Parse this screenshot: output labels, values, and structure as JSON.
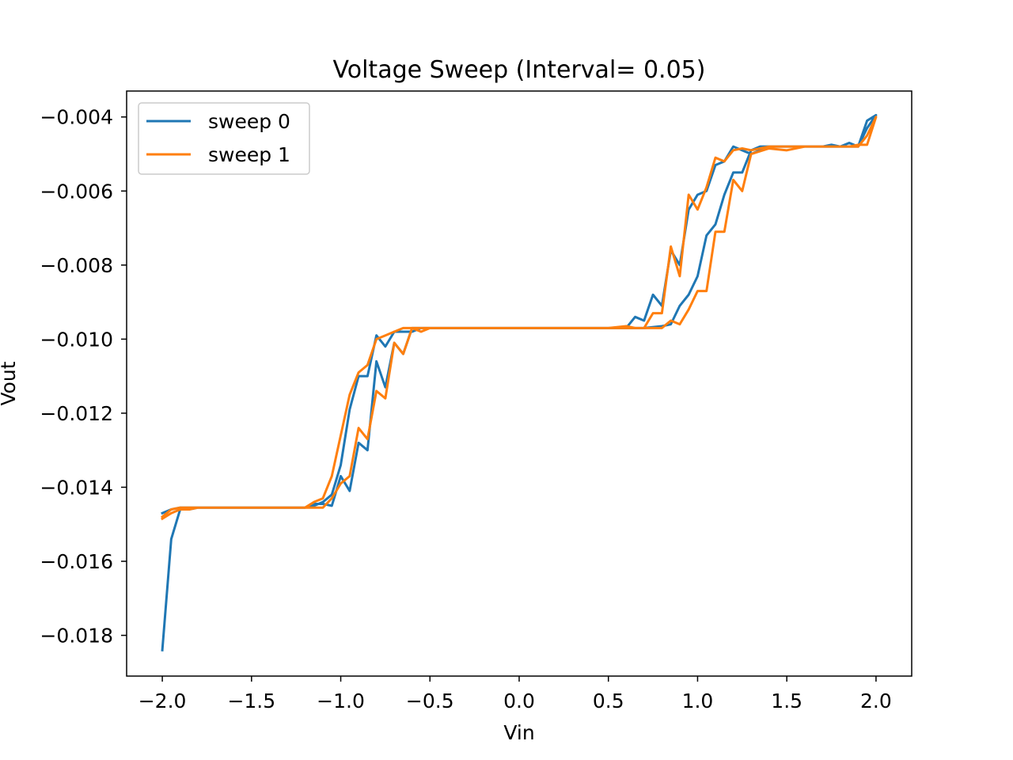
{
  "chart_data": {
    "type": "line",
    "title": "Voltage Sweep (Interval= 0.05)",
    "xlabel": "Vin",
    "ylabel": "Vout",
    "xlim": [
      -2.2,
      2.2
    ],
    "ylim": [
      -0.0191,
      -0.0033
    ],
    "xticks": [
      -2.0,
      -1.5,
      -1.0,
      -0.5,
      0.0,
      0.5,
      1.0,
      1.5,
      2.0
    ],
    "xtick_labels": [
      "−2.0",
      "−1.5",
      "−1.0",
      "−0.5",
      "0.0",
      "0.5",
      "1.0",
      "1.5",
      "2.0"
    ],
    "yticks": [
      -0.018,
      -0.016,
      -0.014,
      -0.012,
      -0.01,
      -0.008,
      -0.006,
      -0.004
    ],
    "ytick_labels": [
      "−0.018",
      "−0.016",
      "−0.014",
      "−0.012",
      "−0.010",
      "−0.008",
      "−0.006",
      "−0.004"
    ],
    "grid": false,
    "legend_position": "upper-left",
    "series": [
      {
        "name": "sweep 0",
        "color": "#1f77b4",
        "x": [
          -2.0,
          -1.95,
          -1.9,
          -1.85,
          -1.8,
          -1.2,
          -1.15,
          -1.1,
          -1.05,
          -1.0,
          -0.95,
          -0.9,
          -0.85,
          -0.8,
          -0.75,
          -0.7,
          -0.65,
          -0.6,
          -0.5,
          0.5,
          0.55,
          0.6,
          0.65,
          0.7,
          0.75,
          0.8,
          0.85,
          0.9,
          0.95,
          1.0,
          1.05,
          1.1,
          1.15,
          1.2,
          1.25,
          1.3,
          1.35,
          1.4,
          1.5,
          1.6,
          1.7,
          1.75,
          1.8,
          1.85,
          1.9,
          1.95,
          2.0,
          1.95,
          1.9,
          1.85,
          1.8,
          1.5,
          1.4,
          1.35,
          1.3,
          1.25,
          1.2,
          1.15,
          1.1,
          1.05,
          1.0,
          0.95,
          0.9,
          0.85,
          0.8,
          0.7,
          0.6,
          0.5,
          -0.5,
          -0.55,
          -0.6,
          -0.65,
          -0.7,
          -0.75,
          -0.8,
          -0.85,
          -0.9,
          -0.95,
          -1.0,
          -1.05,
          -1.1,
          -1.15,
          -1.2,
          -1.8,
          -1.85,
          -1.9,
          -1.95,
          -2.0
        ],
        "y": [
          -0.0184,
          -0.0154,
          -0.0146,
          -0.0146,
          -0.01455,
          -0.01455,
          -0.01445,
          -0.01445,
          -0.0145,
          -0.0137,
          -0.0141,
          -0.0128,
          -0.013,
          -0.0106,
          -0.0113,
          -0.0101,
          -0.0104,
          -0.0097,
          -0.0097,
          -0.0097,
          -0.0097,
          -0.0097,
          -0.0094,
          -0.0095,
          -0.0088,
          -0.0091,
          -0.0076,
          -0.008,
          -0.0065,
          -0.0061,
          -0.006,
          -0.0053,
          -0.0052,
          -0.0048,
          -0.0049,
          -0.005,
          -0.0049,
          -0.0048,
          -0.0048,
          -0.0048,
          -0.0048,
          -0.00475,
          -0.0048,
          -0.0047,
          -0.0048,
          -0.0041,
          -0.00395,
          -0.0043,
          -0.0048,
          -0.0048,
          -0.0048,
          -0.0048,
          -0.0048,
          -0.0048,
          -0.0049,
          -0.0055,
          -0.0055,
          -0.0061,
          -0.0069,
          -0.0072,
          -0.0083,
          -0.0088,
          -0.0091,
          -0.0096,
          -0.00965,
          -0.0097,
          -0.0097,
          -0.0097,
          -0.0097,
          -0.0097,
          -0.0098,
          -0.0098,
          -0.0098,
          -0.0102,
          -0.0099,
          -0.011,
          -0.011,
          -0.0119,
          -0.0134,
          -0.0142,
          -0.0144,
          -0.0145,
          -0.01455,
          -0.01455,
          -0.01455,
          -0.01455,
          -0.0146,
          -0.0147
        ]
      },
      {
        "name": "sweep 1",
        "color": "#ff7f0e",
        "x": [
          -2.0,
          -1.95,
          -1.9,
          -1.85,
          -1.8,
          -1.2,
          -1.15,
          -1.1,
          -1.05,
          -1.0,
          -0.95,
          -0.9,
          -0.85,
          -0.8,
          -0.75,
          -0.7,
          -0.65,
          -0.6,
          -0.55,
          -0.5,
          0.35,
          0.4,
          0.45,
          0.5,
          0.6,
          0.65,
          0.7,
          0.75,
          0.8,
          0.85,
          0.9,
          0.95,
          1.0,
          1.05,
          1.1,
          1.15,
          1.2,
          1.25,
          1.3,
          1.4,
          1.5,
          1.6,
          1.7,
          1.8,
          1.85,
          1.9,
          1.95,
          2.0,
          1.95,
          1.9,
          1.85,
          1.8,
          1.5,
          1.4,
          1.35,
          1.3,
          1.25,
          1.2,
          1.15,
          1.1,
          1.05,
          1.0,
          0.95,
          0.9,
          0.85,
          0.8,
          0.75,
          0.7,
          0.6,
          -0.55,
          -0.6,
          -0.65,
          -0.7,
          -0.75,
          -0.8,
          -0.85,
          -0.9,
          -0.95,
          -1.0,
          -1.05,
          -1.1,
          -1.15,
          -1.2,
          -1.8,
          -1.85,
          -1.9,
          -1.95,
          -2.0
        ],
        "y": [
          -0.01485,
          -0.0147,
          -0.0146,
          -0.0146,
          -0.01455,
          -0.01455,
          -0.01455,
          -0.01455,
          -0.0143,
          -0.0139,
          -0.0137,
          -0.0124,
          -0.0127,
          -0.0114,
          -0.0116,
          -0.0101,
          -0.0104,
          -0.0097,
          -0.0098,
          -0.0097,
          -0.0097,
          -0.0097,
          -0.0097,
          -0.0097,
          -0.00965,
          -0.0097,
          -0.0097,
          -0.0097,
          -0.0097,
          -0.0095,
          -0.0096,
          -0.0092,
          -0.0087,
          -0.0087,
          -0.0071,
          -0.0071,
          -0.0057,
          -0.006,
          -0.005,
          -0.00485,
          -0.0049,
          -0.0048,
          -0.0048,
          -0.0048,
          -0.0048,
          -0.00475,
          -0.00475,
          -0.004,
          -0.0045,
          -0.0048,
          -0.0048,
          -0.0048,
          -0.0048,
          -0.0048,
          -0.00485,
          -0.0049,
          -0.00485,
          -0.0049,
          -0.0052,
          -0.0051,
          -0.0059,
          -0.0065,
          -0.0061,
          -0.0083,
          -0.0075,
          -0.0093,
          -0.0093,
          -0.0097,
          -0.0097,
          -0.0097,
          -0.0097,
          -0.0097,
          -0.0098,
          -0.0099,
          -0.01,
          -0.0107,
          -0.0109,
          -0.0115,
          -0.0126,
          -0.0137,
          -0.0143,
          -0.0144,
          -0.01455,
          -0.01455,
          -0.01455,
          -0.01455,
          -0.0146,
          -0.0148
        ]
      }
    ]
  }
}
